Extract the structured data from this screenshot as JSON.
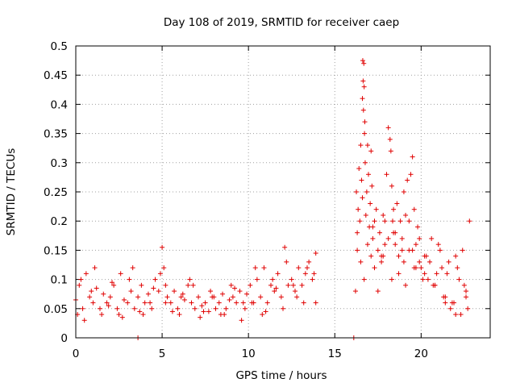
{
  "chart_data": {
    "type": "scatter",
    "title": "Day 108 of 2019, SRMTID for receiver caep",
    "xlabel": "GPS time / hours",
    "ylabel": "SRMTID / TECUs",
    "xlim": [
      0,
      24
    ],
    "ylim": [
      0,
      0.5
    ],
    "x_ticks": [
      0,
      5,
      10,
      15,
      20
    ],
    "x_tick_labels": [
      "0",
      "5",
      "10",
      "15",
      "20"
    ],
    "y_ticks": [
      0,
      0.05,
      0.1,
      0.15,
      0.2,
      0.25,
      0.3,
      0.35,
      0.4,
      0.45,
      0.5
    ],
    "y_tick_labels": [
      "0",
      "0.05",
      "0.1",
      "0.15",
      "0.2",
      "0.25",
      "0.3",
      "0.35",
      "0.4",
      "0.45",
      "0.5"
    ],
    "grid": true,
    "marker": "+",
    "color": "#e00000",
    "series": [
      {
        "name": "SRMTID",
        "x": [
          0.0,
          0.2,
          0.4,
          0.6,
          0.8,
          1.0,
          1.2,
          1.4,
          1.6,
          1.8,
          2.0,
          2.2,
          2.4,
          2.6,
          2.8,
          3.0,
          3.2,
          3.4,
          3.6,
          3.8,
          4.0,
          4.2,
          4.4,
          4.6,
          4.8,
          5.0,
          5.1,
          5.2,
          5.3,
          5.5,
          5.7,
          5.9,
          6.1,
          6.3,
          6.5,
          6.7,
          6.9,
          7.1,
          7.3,
          7.5,
          7.7,
          7.9,
          8.1,
          8.3,
          8.5,
          8.7,
          8.9,
          9.1,
          9.3,
          9.5,
          9.7,
          9.9,
          10.1,
          10.3,
          10.5,
          10.7,
          10.9,
          11.1,
          11.3,
          11.5,
          11.7,
          11.9,
          12.1,
          12.3,
          12.5,
          12.7,
          12.9,
          13.1,
          13.3,
          13.5,
          13.7,
          13.9,
          0.1,
          0.5,
          0.9,
          1.5,
          2.1,
          2.7,
          3.3,
          3.9,
          4.5,
          5.2,
          6.0,
          6.6,
          7.2,
          7.8,
          8.4,
          9.0,
          9.6,
          10.2,
          10.8,
          11.4,
          12.0,
          12.6,
          13.2,
          13.8,
          0.3,
          1.1,
          1.9,
          2.5,
          3.1,
          3.7,
          4.3,
          4.9,
          5.6,
          6.2,
          6.8,
          7.4,
          8.0,
          8.6,
          9.2,
          9.8,
          10.4,
          11.0,
          11.6,
          12.2,
          12.8,
          13.4,
          13.9,
          16.2,
          16.25,
          16.3,
          16.35,
          16.4,
          16.45,
          16.5,
          16.55,
          16.6,
          16.62,
          16.64,
          16.66,
          16.68,
          16.7,
          16.72,
          16.74,
          16.76,
          16.8,
          16.85,
          16.9,
          16.95,
          17.0,
          17.05,
          17.1,
          17.15,
          17.2,
          17.3,
          17.4,
          17.5,
          17.6,
          17.7,
          17.8,
          17.9,
          18.0,
          18.1,
          18.2,
          18.25,
          18.3,
          18.35,
          18.4,
          18.5,
          18.6,
          18.7,
          18.8,
          18.9,
          19.0,
          19.1,
          19.2,
          19.3,
          19.4,
          19.5,
          19.6,
          19.7,
          19.8,
          19.9,
          20.0,
          20.2,
          20.4,
          20.6,
          20.8,
          21.0,
          21.2,
          21.4,
          21.6,
          21.8,
          22.0,
          22.2,
          22.4,
          22.6,
          22.8,
          16.3,
          16.5,
          16.7,
          16.9,
          17.1,
          17.3,
          17.5,
          17.7,
          17.9,
          18.1,
          18.3,
          18.5,
          18.7,
          18.9,
          19.1,
          19.3,
          19.5,
          19.7,
          19.9,
          20.1,
          20.3,
          20.5,
          20.7,
          20.9,
          21.1,
          21.3,
          21.5,
          21.7,
          21.9,
          22.1,
          22.3,
          22.5,
          22.7,
          16.6,
          17.2,
          17.8,
          18.4,
          19.0,
          19.6,
          20.2,
          20.8,
          21.4,
          22.0,
          22.6,
          3.6,
          16.1
        ],
        "y": [
          0.065,
          0.09,
          0.05,
          0.11,
          0.07,
          0.06,
          0.085,
          0.05,
          0.075,
          0.06,
          0.07,
          0.09,
          0.05,
          0.11,
          0.065,
          0.06,
          0.08,
          0.05,
          0.07,
          0.09,
          0.06,
          0.075,
          0.05,
          0.1,
          0.08,
          0.155,
          0.12,
          0.09,
          0.07,
          0.06,
          0.08,
          0.05,
          0.07,
          0.065,
          0.09,
          0.06,
          0.05,
          0.07,
          0.055,
          0.06,
          0.045,
          0.07,
          0.05,
          0.06,
          0.075,
          0.05,
          0.065,
          0.07,
          0.06,
          0.08,
          0.06,
          0.075,
          0.09,
          0.06,
          0.1,
          0.07,
          0.12,
          0.06,
          0.09,
          0.08,
          0.11,
          0.07,
          0.155,
          0.09,
          0.1,
          0.08,
          0.12,
          0.09,
          0.11,
          0.13,
          0.1,
          0.145,
          0.04,
          0.03,
          0.08,
          0.04,
          0.095,
          0.035,
          0.12,
          0.04,
          0.085,
          0.06,
          0.04,
          0.1,
          0.035,
          0.08,
          0.04,
          0.09,
          0.03,
          0.06,
          0.04,
          0.1,
          0.05,
          0.09,
          0.06,
          0.11,
          0.1,
          0.12,
          0.055,
          0.04,
          0.1,
          0.045,
          0.06,
          0.11,
          0.045,
          0.075,
          0.09,
          0.045,
          0.07,
          0.04,
          0.085,
          0.05,
          0.12,
          0.045,
          0.085,
          0.13,
          0.07,
          0.12,
          0.06,
          0.08,
          0.25,
          0.18,
          0.22,
          0.29,
          0.2,
          0.33,
          0.27,
          0.41,
          0.475,
          0.44,
          0.39,
          0.47,
          0.43,
          0.35,
          0.37,
          0.3,
          0.21,
          0.25,
          0.33,
          0.28,
          0.19,
          0.23,
          0.32,
          0.26,
          0.17,
          0.2,
          0.22,
          0.15,
          0.18,
          0.14,
          0.21,
          0.16,
          0.28,
          0.36,
          0.34,
          0.32,
          0.26,
          0.2,
          0.18,
          0.16,
          0.23,
          0.14,
          0.2,
          0.17,
          0.13,
          0.21,
          0.27,
          0.15,
          0.28,
          0.31,
          0.22,
          0.16,
          0.19,
          0.13,
          0.12,
          0.14,
          0.1,
          0.17,
          0.09,
          0.16,
          0.12,
          0.07,
          0.13,
          0.06,
          0.14,
          0.1,
          0.15,
          0.08,
          0.2,
          0.15,
          0.13,
          0.1,
          0.16,
          0.14,
          0.12,
          0.08,
          0.13,
          0.2,
          0.17,
          0.1,
          0.18,
          0.11,
          0.15,
          0.09,
          0.2,
          0.15,
          0.12,
          0.17,
          0.1,
          0.14,
          0.13,
          0.09,
          0.11,
          0.15,
          0.07,
          0.11,
          0.05,
          0.06,
          0.12,
          0.04,
          0.09,
          0.05,
          0.24,
          0.19,
          0.14,
          0.22,
          0.25,
          0.12,
          0.11,
          0.09,
          0.06,
          0.04,
          0.07,
          0.0,
          0.0
        ]
      }
    ]
  }
}
